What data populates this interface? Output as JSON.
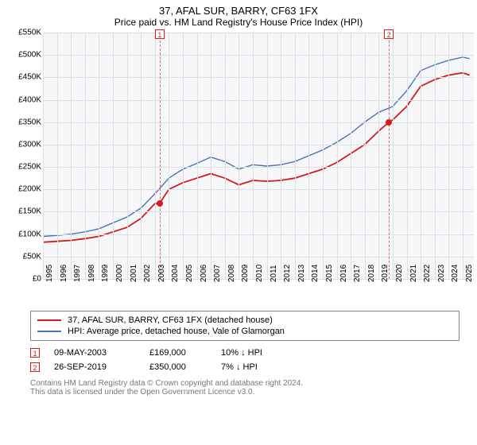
{
  "title_line1": "37, AFAL SUR, BARRY, CF63 1FX",
  "title_line2": "Price paid vs. HM Land Registry's House Price Index (HPI)",
  "colors": {
    "plot_bg": "#f6f7f8",
    "grid": "#dcdfe3",
    "series_red": "#d41c1c",
    "series_blue": "#4a74b8",
    "marker_line": "#d06a6a",
    "marker_red": "#d41c1c",
    "text": "#222222",
    "footer_text": "#888888"
  },
  "chart": {
    "type": "line",
    "x_range": [
      1995,
      2025.8
    ],
    "y_range": [
      0,
      550000
    ],
    "y_tick_step": 50000,
    "y_tick_labels": [
      "£0",
      "£50K",
      "£100K",
      "£150K",
      "£200K",
      "£250K",
      "£300K",
      "£350K",
      "£400K",
      "£450K",
      "£500K",
      "£550K"
    ],
    "x_ticks": [
      1995,
      1996,
      1997,
      1998,
      1999,
      2000,
      2001,
      2002,
      2003,
      2004,
      2005,
      2006,
      2007,
      2008,
      2009,
      2010,
      2011,
      2012,
      2013,
      2014,
      2015,
      2016,
      2017,
      2018,
      2019,
      2020,
      2021,
      2022,
      2023,
      2024,
      2025
    ],
    "markers": [
      {
        "id": "1",
        "x": 2003.35,
        "y": 169000
      },
      {
        "id": "2",
        "x": 2019.73,
        "y": 350000
      }
    ],
    "series": [
      {
        "name": "red",
        "points": [
          [
            1995,
            82000
          ],
          [
            1996,
            84000
          ],
          [
            1997,
            86000
          ],
          [
            1998,
            90000
          ],
          [
            1999,
            95000
          ],
          [
            2000,
            105000
          ],
          [
            2001,
            115000
          ],
          [
            2002,
            135000
          ],
          [
            2003,
            168000
          ],
          [
            2003.35,
            169000
          ],
          [
            2004,
            200000
          ],
          [
            2005,
            215000
          ],
          [
            2006,
            225000
          ],
          [
            2007,
            235000
          ],
          [
            2008,
            225000
          ],
          [
            2009,
            210000
          ],
          [
            2010,
            220000
          ],
          [
            2011,
            218000
          ],
          [
            2012,
            220000
          ],
          [
            2013,
            225000
          ],
          [
            2014,
            235000
          ],
          [
            2015,
            245000
          ],
          [
            2016,
            260000
          ],
          [
            2017,
            280000
          ],
          [
            2018,
            300000
          ],
          [
            2019,
            330000
          ],
          [
            2019.73,
            350000
          ],
          [
            2020,
            355000
          ],
          [
            2021,
            385000
          ],
          [
            2022,
            430000
          ],
          [
            2023,
            445000
          ],
          [
            2024,
            455000
          ],
          [
            2025,
            460000
          ],
          [
            2025.5,
            455000
          ]
        ]
      },
      {
        "name": "blue",
        "points": [
          [
            1995,
            95000
          ],
          [
            1996,
            97000
          ],
          [
            1997,
            100000
          ],
          [
            1998,
            105000
          ],
          [
            1999,
            112000
          ],
          [
            2000,
            125000
          ],
          [
            2001,
            138000
          ],
          [
            2002,
            158000
          ],
          [
            2003,
            190000
          ],
          [
            2004,
            225000
          ],
          [
            2005,
            245000
          ],
          [
            2006,
            258000
          ],
          [
            2007,
            272000
          ],
          [
            2008,
            262000
          ],
          [
            2009,
            245000
          ],
          [
            2010,
            255000
          ],
          [
            2011,
            252000
          ],
          [
            2012,
            255000
          ],
          [
            2013,
            262000
          ],
          [
            2014,
            275000
          ],
          [
            2015,
            288000
          ],
          [
            2016,
            305000
          ],
          [
            2017,
            325000
          ],
          [
            2018,
            350000
          ],
          [
            2019,
            372000
          ],
          [
            2020,
            385000
          ],
          [
            2021,
            420000
          ],
          [
            2022,
            465000
          ],
          [
            2023,
            478000
          ],
          [
            2024,
            488000
          ],
          [
            2025,
            495000
          ],
          [
            2025.5,
            492000
          ]
        ]
      }
    ]
  },
  "legend": {
    "items": [
      {
        "color_key": "series_red",
        "label": "37, AFAL SUR, BARRY, CF63 1FX (detached house)"
      },
      {
        "color_key": "series_blue",
        "label": "HPI: Average price, detached house, Vale of Glamorgan"
      }
    ]
  },
  "events": [
    {
      "id": "1",
      "date": "09-MAY-2003",
      "price": "£169,000",
      "delta": "10% ↓ HPI"
    },
    {
      "id": "2",
      "date": "26-SEP-2019",
      "price": "£350,000",
      "delta": "7% ↓ HPI"
    }
  ],
  "footer": {
    "line1": "Contains HM Land Registry data © Crown copyright and database right 2024.",
    "line2": "This data is licensed under the Open Government Licence v3.0."
  }
}
